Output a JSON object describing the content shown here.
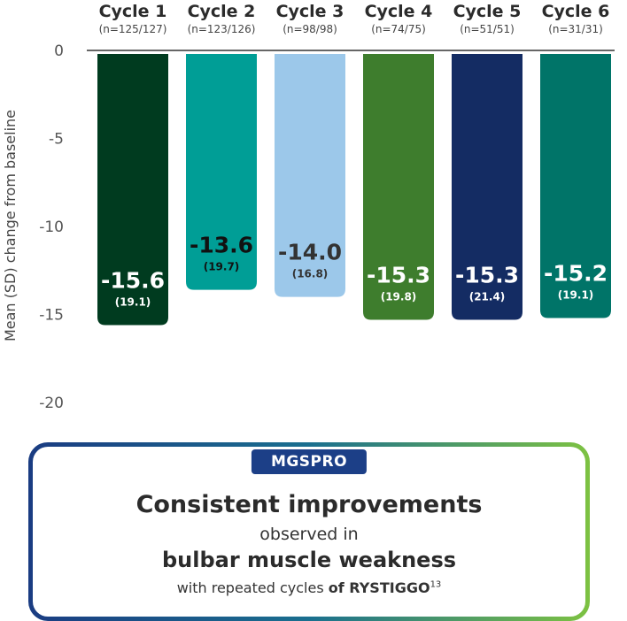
{
  "chart_data": {
    "type": "bar",
    "categories": [
      "Cycle 1",
      "Cycle 2",
      "Cycle 3",
      "Cycle 4",
      "Cycle 5",
      "Cycle 6"
    ],
    "n_labels": [
      "(n=125/127)",
      "(n=123/126)",
      "(n=98/98)",
      "(n=74/75)",
      "(n=51/51)",
      "(n=31/31)"
    ],
    "values": [
      -15.6,
      -13.6,
      -14.0,
      -15.3,
      -15.3,
      -15.2
    ],
    "value_labels": [
      "-15.6",
      "-13.6",
      "-14.0",
      "-15.3",
      "-15.3",
      "-15.2"
    ],
    "sd_labels": [
      "(19.1)",
      "(19.7)",
      "(16.8)",
      "(19.8)",
      "(21.4)",
      "(19.1)"
    ],
    "colors": [
      "#003b1f",
      "#009e96",
      "#9cc8ea",
      "#3e7d2d",
      "#142c63",
      "#007468"
    ],
    "label_colors": [
      "#ffffff",
      "#111111",
      "#333333",
      "#ffffff",
      "#ffffff",
      "#ffffff"
    ],
    "ylabel": "Mean (SD) change from baseline",
    "ylim": [
      -20,
      0
    ],
    "yticks": [
      0,
      -5,
      -10,
      -15,
      -20
    ],
    "grid": false
  },
  "callout": {
    "badge": "MGSPRO",
    "headline": "Consistent improvements",
    "line2": "observed in",
    "line3": "bulbar muscle weakness",
    "line4_prefix": "with repeated cycles",
    "line4_bold": "of RYSTIGGO",
    "line4_sup": "13"
  }
}
